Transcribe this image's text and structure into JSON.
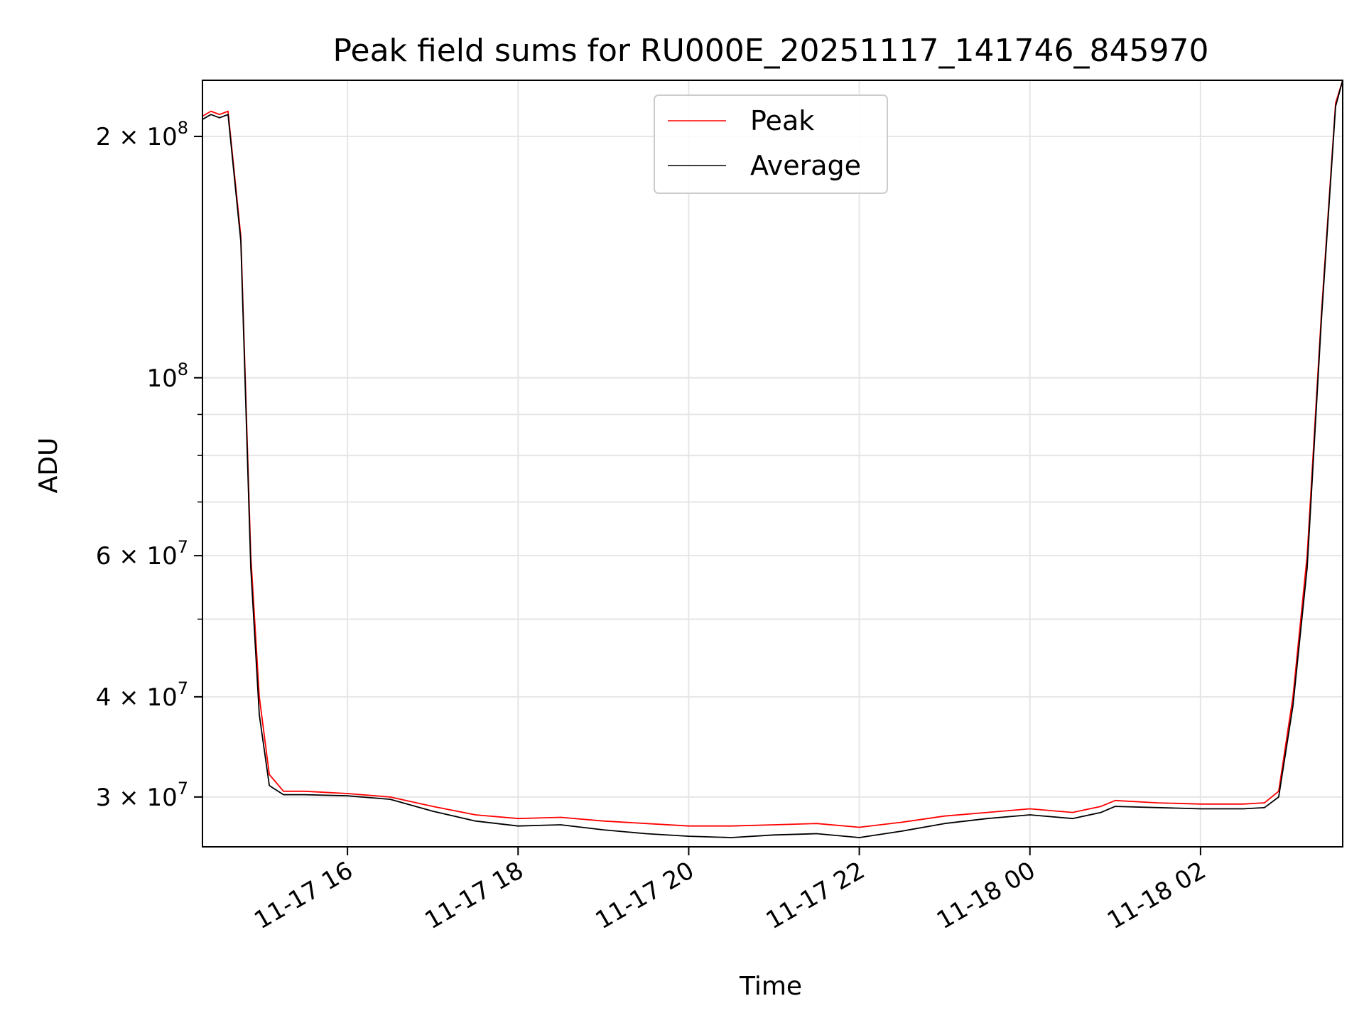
{
  "chart_data": {
    "type": "line",
    "title": "Peak field sums for RU000E_20251117_141746_845970",
    "xlabel": "Time",
    "ylabel": "ADU",
    "yscale": "log",
    "xlim": [
      "2025-11-17 14:18",
      "2025-11-18 03:40"
    ],
    "ylim": [
      26000000,
      235000000
    ],
    "grid": true,
    "legend_position": "upper center",
    "x_ticks": [
      "11-17 16",
      "11-17 18",
      "11-17 20",
      "11-17 22",
      "11-18 00",
      "11-18 02"
    ],
    "y_ticks": [
      {
        "value": 30000000,
        "mantissa": "3",
        "exponent": "7"
      },
      {
        "value": 40000000,
        "mantissa": "4",
        "exponent": "7"
      },
      {
        "value": 60000000,
        "mantissa": "6",
        "exponent": "7"
      },
      {
        "value": 100000000,
        "mantissa": "",
        "exponent": "8"
      },
      {
        "value": 200000000,
        "mantissa": "2",
        "exponent": "8"
      }
    ],
    "series": [
      {
        "name": "Peak",
        "color": "#ff0000",
        "x": [
          "2025-11-17 14:18",
          "2025-11-17 14:24",
          "2025-11-17 14:30",
          "2025-11-17 14:36",
          "2025-11-17 14:45",
          "2025-11-17 14:52",
          "2025-11-17 14:58",
          "2025-11-17 15:05",
          "2025-11-17 15:15",
          "2025-11-17 15:30",
          "2025-11-17 16:00",
          "2025-11-17 16:30",
          "2025-11-17 17:00",
          "2025-11-17 17:30",
          "2025-11-17 18:00",
          "2025-11-17 18:30",
          "2025-11-17 19:00",
          "2025-11-17 19:30",
          "2025-11-17 20:00",
          "2025-11-17 20:30",
          "2025-11-17 21:00",
          "2025-11-17 21:30",
          "2025-11-17 22:00",
          "2025-11-17 22:30",
          "2025-11-17 23:00",
          "2025-11-17 23:30",
          "2025-11-18 00:00",
          "2025-11-18 00:30",
          "2025-11-18 00:50",
          "2025-11-18 01:00",
          "2025-11-18 01:30",
          "2025-11-18 02:00",
          "2025-11-18 02:30",
          "2025-11-18 02:45",
          "2025-11-18 02:55",
          "2025-11-18 03:05",
          "2025-11-18 03:15",
          "2025-11-18 03:25",
          "2025-11-18 03:35",
          "2025-11-18 03:40"
        ],
        "y": [
          212000000,
          215000000,
          213000000,
          215000000,
          150000000,
          60000000,
          40000000,
          32000000,
          30500000,
          30500000,
          30300000,
          30000000,
          29200000,
          28500000,
          28200000,
          28300000,
          28000000,
          27800000,
          27600000,
          27600000,
          27700000,
          27800000,
          27500000,
          27900000,
          28400000,
          28700000,
          29000000,
          28700000,
          29200000,
          29700000,
          29500000,
          29400000,
          29400000,
          29500000,
          30500000,
          40000000,
          60000000,
          120000000,
          220000000,
          235000000
        ]
      },
      {
        "name": "Average",
        "color": "#000000",
        "x": [
          "2025-11-17 14:18",
          "2025-11-17 14:24",
          "2025-11-17 14:30",
          "2025-11-17 14:36",
          "2025-11-17 14:45",
          "2025-11-17 14:52",
          "2025-11-17 14:58",
          "2025-11-17 15:05",
          "2025-11-17 15:15",
          "2025-11-17 15:30",
          "2025-11-17 16:00",
          "2025-11-17 16:30",
          "2025-11-17 17:00",
          "2025-11-17 17:30",
          "2025-11-17 18:00",
          "2025-11-17 18:30",
          "2025-11-17 19:00",
          "2025-11-17 19:30",
          "2025-11-17 20:00",
          "2025-11-17 20:30",
          "2025-11-17 21:00",
          "2025-11-17 21:30",
          "2025-11-17 22:00",
          "2025-11-17 22:30",
          "2025-11-17 23:00",
          "2025-11-17 23:30",
          "2025-11-18 00:00",
          "2025-11-18 00:30",
          "2025-11-18 00:50",
          "2025-11-18 01:00",
          "2025-11-18 01:30",
          "2025-11-18 02:00",
          "2025-11-18 02:30",
          "2025-11-18 02:45",
          "2025-11-18 02:55",
          "2025-11-18 03:05",
          "2025-11-18 03:15",
          "2025-11-18 03:25",
          "2025-11-18 03:35",
          "2025-11-18 03:40"
        ],
        "y": [
          210000000,
          213000000,
          211000000,
          213000000,
          148000000,
          58000000,
          38000000,
          31000000,
          30200000,
          30200000,
          30100000,
          29800000,
          28800000,
          28000000,
          27600000,
          27700000,
          27300000,
          27000000,
          26800000,
          26700000,
          26900000,
          27000000,
          26700000,
          27200000,
          27800000,
          28200000,
          28500000,
          28200000,
          28700000,
          29200000,
          29100000,
          29000000,
          29000000,
          29100000,
          30000000,
          39000000,
          58000000,
          118000000,
          218000000,
          235000000
        ]
      }
    ]
  }
}
